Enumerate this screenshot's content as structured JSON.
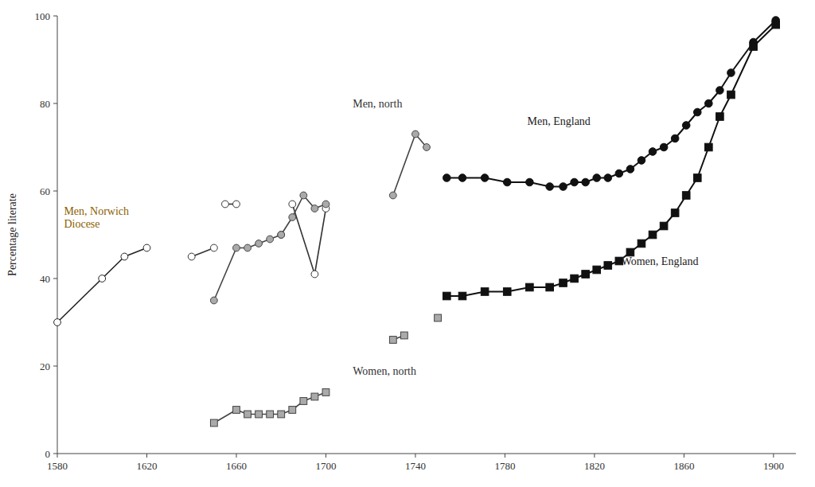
{
  "chart_data": {
    "type": "line",
    "ylabel": "Percentage literate",
    "xlim": [
      1580,
      1910
    ],
    "ylim": [
      0,
      100
    ],
    "xticks": [
      1580,
      1620,
      1660,
      1700,
      1740,
      1780,
      1820,
      1860,
      1900
    ],
    "yticks": [
      0,
      20,
      40,
      60,
      80,
      100
    ],
    "grid": false,
    "series": [
      {
        "color": "#222222",
        "marker": "circle-open",
        "x": [
          1580,
          1600,
          1610,
          1620
        ],
        "values": [
          30,
          40,
          45,
          47
        ]
      },
      {
        "color": "#333333",
        "marker": "circle-open",
        "x": [
          1640,
          1650
        ],
        "values": [
          45,
          47
        ]
      },
      {
        "color": "#333333",
        "marker": "circle-open",
        "x": [
          1655,
          1660
        ],
        "values": [
          57,
          57
        ]
      },
      {
        "color": "#333333",
        "marker": "circle-open",
        "x": [
          1685,
          1695,
          1700
        ],
        "values": [
          57,
          41,
          56
        ]
      },
      {
        "color": "#444444",
        "marker": "circle-gray",
        "x": [
          1650,
          1660,
          1665,
          1670,
          1675,
          1680
        ],
        "values": [
          35,
          47,
          47,
          48,
          49,
          50
        ]
      },
      {
        "color": "#444444",
        "marker": "circle-gray",
        "x": [
          1680,
          1685,
          1690,
          1695,
          1700
        ],
        "values": [
          50,
          54,
          59,
          56,
          57
        ]
      },
      {
        "color": "#444444",
        "marker": "circle-gray",
        "x": [
          1730,
          1740,
          1745
        ],
        "values": [
          59,
          73,
          70
        ]
      },
      {
        "color": "#444444",
        "marker": "square-gray",
        "x": [
          1650,
          1660,
          1665,
          1670,
          1675,
          1680,
          1685,
          1690,
          1695,
          1700
        ],
        "values": [
          7,
          10,
          9,
          9,
          9,
          9,
          10,
          12,
          13,
          14
        ]
      },
      {
        "color": "#444444",
        "marker": "square-gray",
        "x": [
          1730,
          1735
        ],
        "values": [
          26,
          27
        ]
      },
      {
        "color": "#444444",
        "marker": "square-gray",
        "line_style": "none",
        "x": [
          1750
        ],
        "values": [
          31
        ]
      },
      {
        "color": "#111111",
        "marker": "circle-filled",
        "x": [
          1754,
          1761,
          1771,
          1781,
          1791,
          1800,
          1806,
          1811,
          1816,
          1821,
          1826,
          1831,
          1836,
          1841,
          1846,
          1851,
          1856,
          1861,
          1866,
          1871,
          1876,
          1881,
          1891,
          1901
        ],
        "values": [
          63,
          63,
          63,
          62,
          62,
          61,
          61,
          62,
          62,
          63,
          63,
          64,
          65,
          67,
          69,
          70,
          72,
          75,
          78,
          80,
          83,
          87,
          94,
          99
        ]
      },
      {
        "color": "#111111",
        "marker": "square-filled",
        "x": [
          1754,
          1761,
          1771,
          1781,
          1791,
          1800,
          1806,
          1811,
          1816,
          1821,
          1826,
          1831,
          1836,
          1841,
          1846,
          1851,
          1856,
          1861,
          1866,
          1871,
          1876,
          1881,
          1891,
          1901
        ],
        "values": [
          36,
          36,
          37,
          37,
          38,
          38,
          39,
          40,
          41,
          42,
          43,
          44,
          46,
          48,
          50,
          52,
          55,
          59,
          63,
          70,
          77,
          82,
          93,
          98
        ]
      }
    ],
    "annotations": [
      {
        "text": "Men, Norwich\nDiocese",
        "x": 1583,
        "y": 54,
        "color": "#8B6000"
      },
      {
        "text": "Men, north",
        "x": 1712,
        "y": 80,
        "color": "#333333"
      },
      {
        "text": "Men, England",
        "x": 1790,
        "y": 76,
        "color": "#222222"
      },
      {
        "text": "Women, north",
        "x": 1712,
        "y": 19,
        "color": "#333333"
      },
      {
        "text": "Women, England",
        "x": 1832,
        "y": 44,
        "color": "#222222"
      }
    ]
  }
}
